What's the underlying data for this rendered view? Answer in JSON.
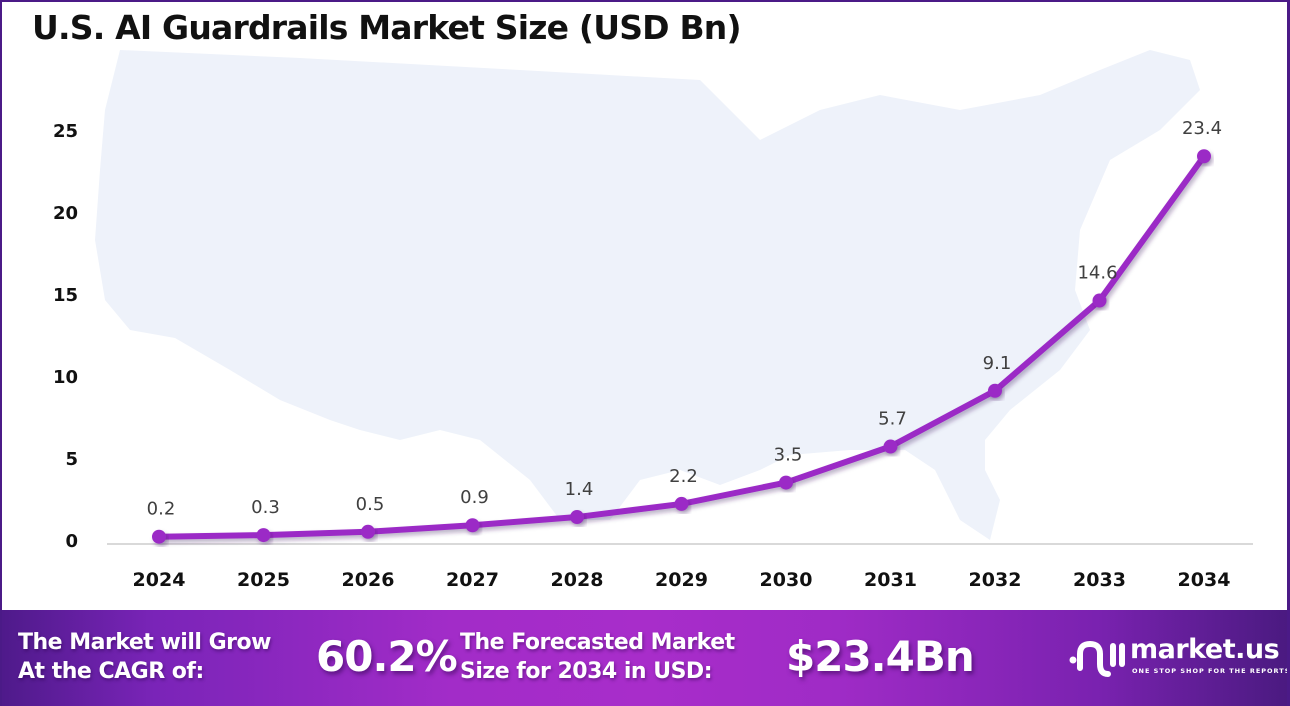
{
  "title": "U.S. AI Guardrails Market Size (USD Bn)",
  "colors": {
    "line": "#9b2bc6",
    "border": "#4b1a87",
    "map": "#eef2fa",
    "axis": "#d9d9d9"
  },
  "chart_data": {
    "type": "line",
    "title": "U.S. AI Guardrails Market Size (USD Bn)",
    "xlabel": "",
    "ylabel": "",
    "categories": [
      "2024",
      "2025",
      "2026",
      "2027",
      "2028",
      "2029",
      "2030",
      "2031",
      "2032",
      "2033",
      "2034"
    ],
    "series": [
      {
        "name": "Market Size (USD Bn)",
        "values": [
          0.2,
          0.3,
          0.5,
          0.9,
          1.4,
          2.2,
          3.5,
          5.7,
          9.1,
          14.6,
          23.4
        ],
        "labels": [
          "0.2",
          "0.3",
          "0.5",
          "0.9",
          "1.4",
          "2.2",
          "3.5",
          "5.7",
          "9.1",
          "14.6",
          "23.4"
        ]
      }
    ],
    "yticks": [
      "0",
      "5",
      "10",
      "15",
      "20",
      "25"
    ],
    "ylim": [
      0,
      25
    ],
    "grid": false,
    "legend": "none"
  },
  "footer": {
    "cagr_label_line1": "The Market will Grow",
    "cagr_label_line2": "At the CAGR of:",
    "cagr_value": "60.2%",
    "forecast_label_line1": "The Forecasted Market",
    "forecast_label_line2": "Size for 2034 in USD:",
    "forecast_value": "$23.4Bn",
    "logo_name": "market.us",
    "logo_tagline": "ONE STOP SHOP FOR THE REPORTS"
  }
}
